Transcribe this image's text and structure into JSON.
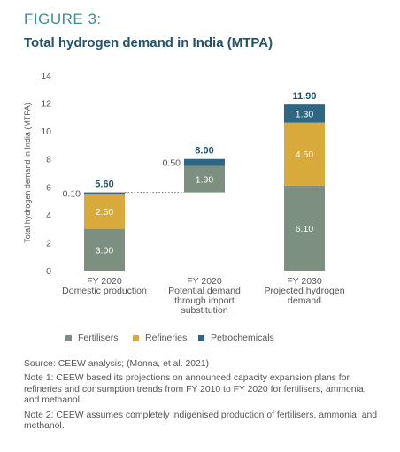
{
  "figure_label": "FIGURE 3:",
  "title": "Total hydrogen demand in India (MTPA)",
  "colors": {
    "fertilisers": "#7d8f80",
    "refineries": "#d8a93b",
    "petrochemicals": "#2f6782",
    "title": "#22536b",
    "figure_label": "#3f8e8a"
  },
  "chart_data": {
    "type": "bar",
    "stacked": true,
    "waterfall": true,
    "ylabel": "Total hydrogen demand in India (MTPA)",
    "ylim": [
      0,
      14
    ],
    "yticks": [
      "0",
      "2",
      "4",
      "6",
      "8",
      "10",
      "12",
      "14"
    ],
    "grid": false,
    "legend_position": "bottom",
    "categories": [
      [
        "FY 2020",
        "Domestic production"
      ],
      [
        "FY 2020",
        "Potential demand",
        "through import",
        "substitution"
      ],
      [
        "FY 2030",
        "Projected hydrogen",
        "demand"
      ]
    ],
    "series": [
      {
        "name": "Fertilisers",
        "values": [
          3.0,
          1.9,
          6.1
        ],
        "labels": [
          "3.00",
          "1.90",
          "6.10"
        ]
      },
      {
        "name": "Refineries",
        "values": [
          2.5,
          0,
          4.5
        ],
        "labels": [
          "2.50",
          "",
          "4.50"
        ]
      },
      {
        "name": "Petrochemicals",
        "values": [
          0.1,
          0.5,
          1.3
        ],
        "labels": [
          "0.10",
          "0.50",
          "1.30"
        ]
      }
    ],
    "bar_base": [
      0,
      5.6,
      0
    ],
    "totals": [
      "5.60",
      "8.00",
      "11.90"
    ]
  },
  "notes": {
    "source": "Source: CEEW analysis;  (Monna, et al. 2021)",
    "note1": "Note 1: CEEW based its projections on announced capacity expansion plans for refineries and consumption trends from FY 2010 to FY 2020 for fertilisers, ammonia, and methanol.",
    "note2": "Note 2: CEEW assumes completely indigenised production of fertilisers, ammonia, and methanol."
  }
}
